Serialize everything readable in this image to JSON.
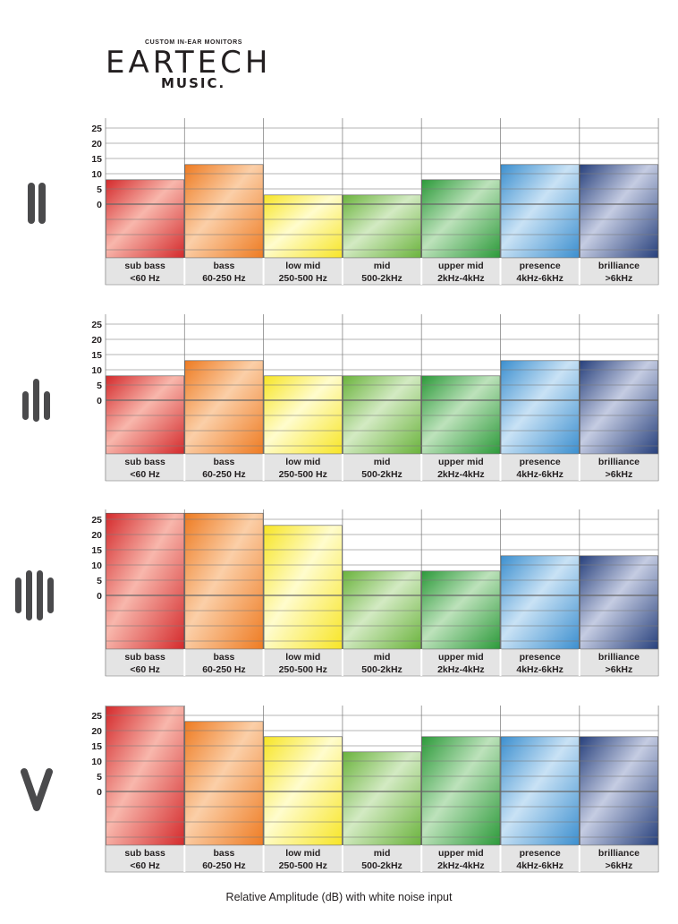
{
  "logo": {
    "tagline": "CUSTOM IN-EAR MONITORS",
    "brand": "EARTECH",
    "sub": "MUSIC."
  },
  "footer": {
    "caption": "Relative Amplitude (dB) with white noise input"
  },
  "bands": [
    {
      "name": "sub bass",
      "range": "<60 Hz",
      "colors": [
        "#d42a2c",
        "#f8b7ac"
      ]
    },
    {
      "name": "bass",
      "range": "60-250 Hz",
      "colors": [
        "#ee7b22",
        "#fbcfa8"
      ]
    },
    {
      "name": "low mid",
      "range": "250-500 Hz",
      "colors": [
        "#f7e526",
        "#fffccd"
      ]
    },
    {
      "name": "mid",
      "range": "500-2kHz",
      "colors": [
        "#6ab33c",
        "#d3eac3"
      ]
    },
    {
      "name": "upper mid",
      "range": "2kHz-4kHz",
      "colors": [
        "#2c9a3a",
        "#bde2bb"
      ]
    },
    {
      "name": "presence",
      "range": "4kHz-6kHz",
      "colors": [
        "#3c8fcf",
        "#c9e2f5"
      ]
    },
    {
      "name": "brilliance",
      "range": ">6kHz",
      "colors": [
        "#27407c",
        "#c5cce2"
      ]
    }
  ],
  "chart_data": [
    {
      "type": "bar",
      "icon": "two-bars-icon",
      "categories": [
        "sub bass <60 Hz",
        "bass 60-250 Hz",
        "low mid 250-500 Hz",
        "mid 500-2kHz",
        "upper mid 2kHz-4kHz",
        "presence 4kHz-6kHz",
        "brilliance >6kHz"
      ],
      "values": [
        8,
        13,
        3,
        3,
        8,
        13,
        13
      ],
      "yticks": [
        25,
        20,
        15,
        10,
        5,
        0
      ],
      "ylim": [
        -18,
        27
      ],
      "grid": true
    },
    {
      "type": "bar",
      "icon": "three-bars-icon",
      "categories": [
        "sub bass <60 Hz",
        "bass 60-250 Hz",
        "low mid 250-500 Hz",
        "mid 500-2kHz",
        "upper mid 2kHz-4kHz",
        "presence 4kHz-6kHz",
        "brilliance >6kHz"
      ],
      "values": [
        8,
        13,
        8,
        8,
        8,
        13,
        13
      ],
      "yticks": [
        25,
        20,
        15,
        10,
        5,
        0
      ],
      "ylim": [
        -18,
        27
      ],
      "grid": true
    },
    {
      "type": "bar",
      "icon": "four-bars-icon",
      "categories": [
        "sub bass <60 Hz",
        "bass 60-250 Hz",
        "low mid 250-500 Hz",
        "mid 500-2kHz",
        "upper mid 2kHz-4kHz",
        "presence 4kHz-6kHz",
        "brilliance >6kHz"
      ],
      "values": [
        27,
        27,
        23,
        8,
        8,
        13,
        13
      ],
      "yticks": [
        25,
        20,
        15,
        10,
        5,
        0
      ],
      "ylim": [
        -18,
        27
      ],
      "grid": true
    },
    {
      "type": "bar",
      "icon": "v-shape-icon",
      "categories": [
        "sub bass <60 Hz",
        "bass 60-250 Hz",
        "low mid 250-500 Hz",
        "mid 500-2kHz",
        "upper mid 2kHz-4kHz",
        "presence 4kHz-6kHz",
        "brilliance >6kHz"
      ],
      "values": [
        28,
        23,
        18,
        13,
        18,
        18,
        18
      ],
      "yticks": [
        25,
        20,
        15,
        10,
        5,
        0
      ],
      "ylim": [
        -18,
        28
      ],
      "grid": true
    }
  ]
}
